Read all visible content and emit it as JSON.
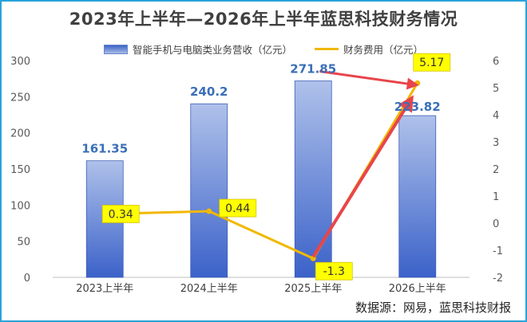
{
  "chart_data": {
    "type": "bar",
    "title": "2023年上半年—2026年上半年蓝思科技财务情况",
    "categories": [
      "2023上半年",
      "2024上半年",
      "2025上半年",
      "2026上半年"
    ],
    "series": [
      {
        "name": "智能手机与电脑类业务营收（亿元）",
        "type": "bar",
        "axis": "left",
        "values": [
          161.35,
          240.2,
          271.85,
          223.82
        ],
        "labels": [
          "161.35",
          "240.2",
          "271.85",
          "223.82"
        ],
        "color": "#4169c8"
      },
      {
        "name": "财务费用（亿元）",
        "type": "line",
        "axis": "right",
        "values": [
          0.34,
          0.44,
          -1.3,
          5.17
        ],
        "labels": [
          "0.34",
          "0.44",
          "-1.3",
          "5.17"
        ],
        "color": "#f0b800"
      }
    ],
    "y_left": {
      "lim": [
        0,
        300
      ],
      "ticks": [
        "0",
        "50",
        "100",
        "150",
        "200",
        "250",
        "300"
      ]
    },
    "y_right": {
      "lim": [
        -2,
        6
      ],
      "ticks": [
        "-2",
        "-1",
        "0",
        "1",
        "2",
        "3",
        "4",
        "5",
        "6"
      ]
    },
    "grid": false,
    "legend": "top-center",
    "colors": {
      "bar_label": "#3a6fb8",
      "line_label_bg": "#ffff00",
      "arrow": "#e8454b",
      "frame": "#29a3d9"
    }
  },
  "watermark": "数据源：网易，蓝思科技财报"
}
